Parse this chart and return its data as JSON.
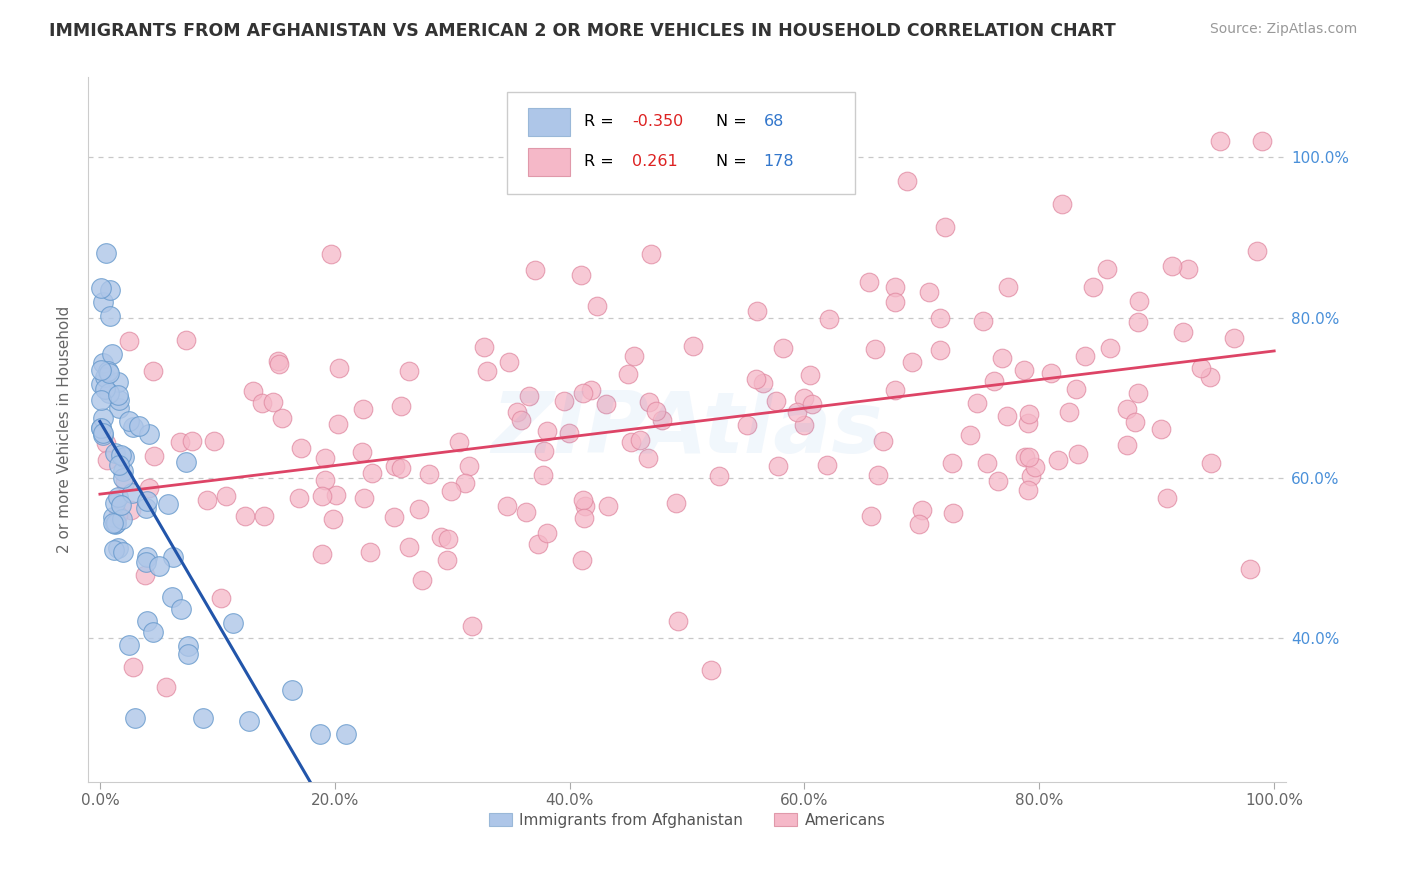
{
  "title": "IMMIGRANTS FROM AFGHANISTAN VS AMERICAN 2 OR MORE VEHICLES IN HOUSEHOLD CORRELATION CHART",
  "source": "Source: ZipAtlas.com",
  "ylabel": "2 or more Vehicles in Household",
  "r1": -0.35,
  "n1": 68,
  "r2": 0.261,
  "n2": 178,
  "color_blue_fill": "#aec6e8",
  "color_pink_fill": "#f5b8c8",
  "color_blue_line": "#2255aa",
  "color_pink_line": "#dd4466",
  "watermark": "ZIPAtlas",
  "background_color": "#ffffff",
  "grid_color": "#bbbbbb",
  "ytick_color": "#4a90d9",
  "title_color": "#333333",
  "source_color": "#999999",
  "label_color": "#666666"
}
